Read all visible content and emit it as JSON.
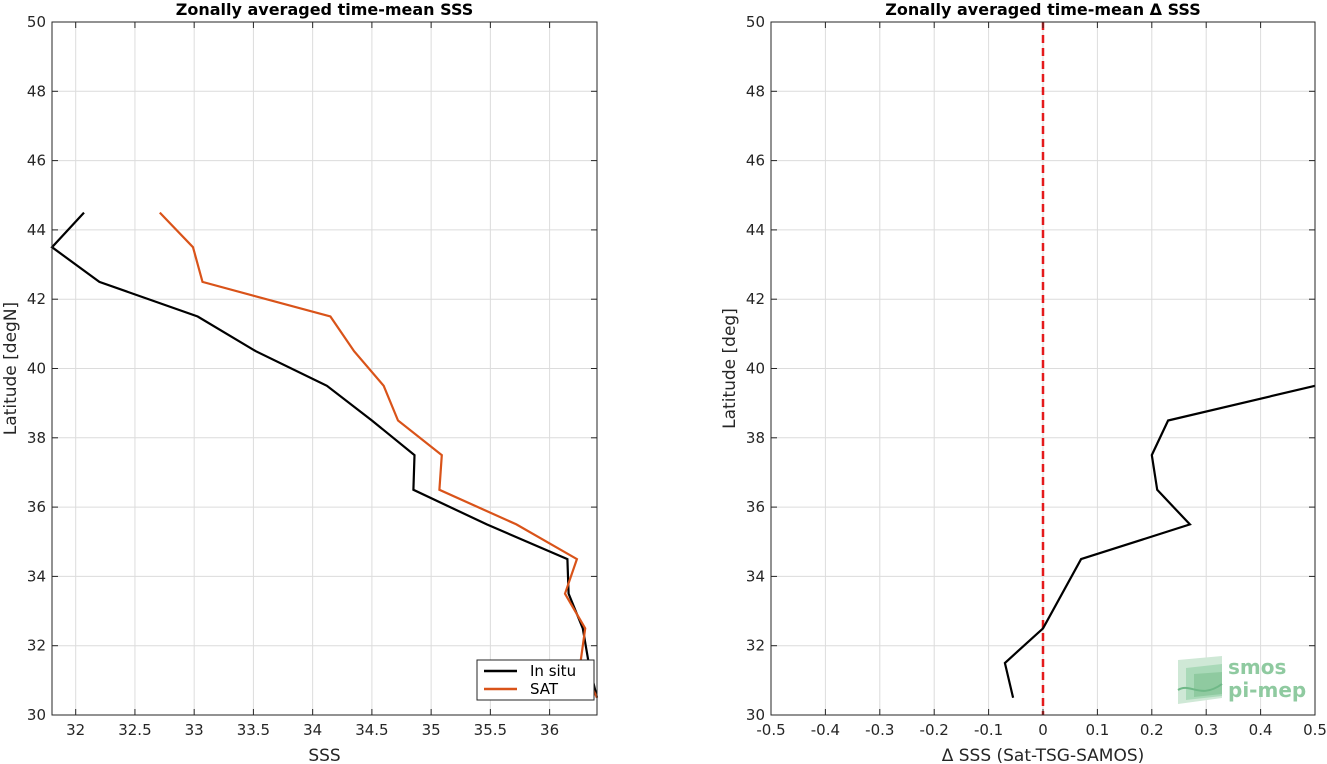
{
  "chart_data": [
    {
      "type": "line",
      "title": "Zonally averaged time-mean SSS",
      "xlabel": "SSS",
      "ylabel": "Latitude [degN]",
      "xlim": [
        31.8,
        36.4
      ],
      "ylim": [
        30,
        50
      ],
      "xticks": [
        "32",
        "32.5",
        "33",
        "33.5",
        "34",
        "34.5",
        "35",
        "35.5",
        "36"
      ],
      "yticks": [
        "30",
        "32",
        "34",
        "36",
        "38",
        "40",
        "42",
        "44",
        "46",
        "48",
        "50"
      ],
      "grid": true,
      "legend_position": "bottom-right",
      "series": [
        {
          "name": "In situ",
          "color": "#000000",
          "points": [
            [
              32.07,
              44.5
            ],
            [
              31.8,
              43.5
            ],
            [
              32.2,
              42.5
            ],
            [
              33.03,
              41.5
            ],
            [
              33.52,
              40.5
            ],
            [
              34.12,
              39.5
            ],
            [
              34.5,
              38.5
            ],
            [
              34.86,
              37.5
            ],
            [
              34.85,
              36.5
            ],
            [
              35.47,
              35.5
            ],
            [
              36.15,
              34.5
            ],
            [
              36.16,
              33.5
            ],
            [
              36.28,
              32.5
            ],
            [
              36.33,
              31.5
            ],
            [
              36.4,
              30.5
            ]
          ]
        },
        {
          "name": "SAT",
          "color": "#d95319",
          "points": [
            [
              32.71,
              44.5
            ],
            [
              32.99,
              43.5
            ],
            [
              33.07,
              42.5
            ],
            [
              34.15,
              41.5
            ],
            [
              34.35,
              40.5
            ],
            [
              34.6,
              39.5
            ],
            [
              34.72,
              38.5
            ],
            [
              35.09,
              37.5
            ],
            [
              35.07,
              36.5
            ],
            [
              35.72,
              35.5
            ],
            [
              36.23,
              34.5
            ],
            [
              36.13,
              33.5
            ],
            [
              36.3,
              32.5
            ],
            [
              36.26,
              31.5
            ],
            [
              36.4,
              30.5
            ]
          ]
        }
      ]
    },
    {
      "type": "line",
      "title": "Zonally averaged time-mean Δ SSS",
      "xlabel": "Δ SSS (Sat-TSG-SAMOS)",
      "ylabel": "Latitude [deg]",
      "xlim": [
        -0.5,
        0.5
      ],
      "ylim": [
        30,
        50
      ],
      "xticks": [
        "-0.5",
        "-0.4",
        "-0.3",
        "-0.2",
        "-0.1",
        "0",
        "0.1",
        "0.2",
        "0.3",
        "0.4",
        "0.5"
      ],
      "yticks": [
        "30",
        "32",
        "34",
        "36",
        "38",
        "40",
        "42",
        "44",
        "46",
        "48",
        "50"
      ],
      "grid": true,
      "reference_line": {
        "x": 0,
        "color": "#e41a1c",
        "style": "dashed"
      },
      "series": [
        {
          "color": "#000000",
          "points": [
            [
              -0.055,
              30.5
            ],
            [
              -0.07,
              31.5
            ],
            [
              0.0,
              32.5
            ],
            [
              0.07,
              34.5
            ],
            [
              0.27,
              35.5
            ],
            [
              0.21,
              36.5
            ],
            [
              0.2,
              37.5
            ],
            [
              0.23,
              38.5
            ],
            [
              0.5,
              39.5
            ]
          ]
        }
      ]
    }
  ],
  "logo": {
    "line1": "smos",
    "line2": "pi-mep",
    "color": "#8fcaa0"
  }
}
